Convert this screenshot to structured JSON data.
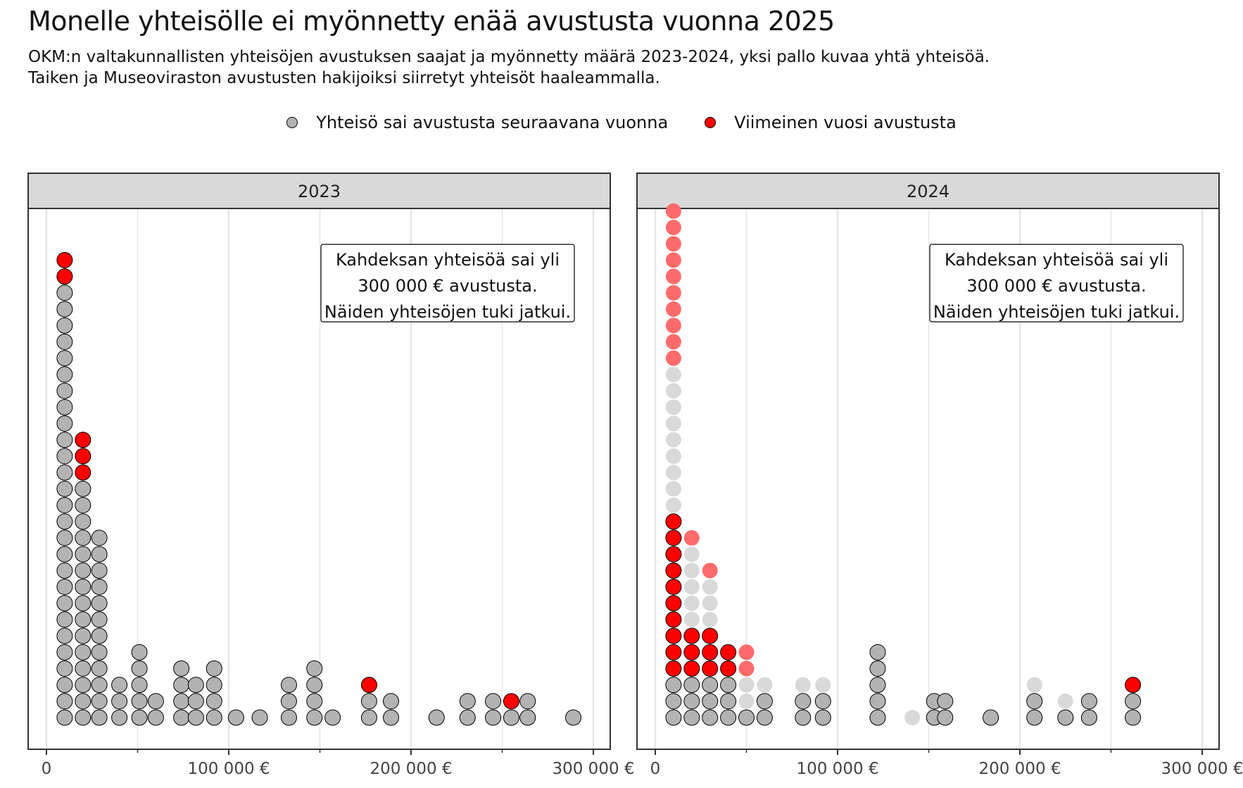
{
  "title": "Monelle yhteisölle ei myönnetty enää avustusta vuonna 2025",
  "subtitle_line1": "OKM:n valtakunnallisten yhteisöjen avustuksen saajat ja myönnetty määrä 2023-2024, yksi pallo kuvaa yhtä yhteisöä.",
  "subtitle_line2": "Taiken ja Museoviraston avustusten hakijoiksi siirretyt yhteisöt haaleammalla.",
  "legend": [
    {
      "label": "Yhteisö sai avustusta seuraavana vuonna",
      "color": "#b3b3b3"
    },
    {
      "label": "Viimeinen vuosi avustusta",
      "color": "#ff0000"
    }
  ],
  "colors": {
    "continued": "#b3b3b3",
    "last": "#ff0000",
    "continued_transferred": "#d9d9d9",
    "last_transferred": "#ff6b6b",
    "strip": "#d9d9d9"
  },
  "chart_data": [
    {
      "type": "dotplot",
      "panel": "2023",
      "x_ticks": [
        "0",
        "100 000 €",
        "200 000 €",
        "300 000 €"
      ],
      "xlim": [
        0,
        310000
      ],
      "annotation": [
        "Kahdeksan yhteisöä sai yli",
        "300 000 € avustusta.",
        "Näiden yhteisöjen tuki jatkui."
      ],
      "columns": [
        {
          "x": 10000,
          "stack": [
            "c",
            "c",
            "c",
            "c",
            "c",
            "c",
            "c",
            "c",
            "c",
            "c",
            "c",
            "c",
            "c",
            "c",
            "c",
            "c",
            "c",
            "c",
            "c",
            "c",
            "c",
            "c",
            "c",
            "c",
            "c",
            "c",
            "c",
            "l",
            "l"
          ]
        },
        {
          "x": 20000,
          "stack": [
            "c",
            "c",
            "c",
            "c",
            "c",
            "c",
            "c",
            "c",
            "c",
            "c",
            "c",
            "c",
            "c",
            "c",
            "c",
            "l",
            "l",
            "l"
          ]
        },
        {
          "x": 29000,
          "stack": [
            "c",
            "c",
            "c",
            "c",
            "c",
            "c",
            "c",
            "c",
            "c",
            "c",
            "c",
            "c"
          ]
        },
        {
          "x": 40000,
          "stack": [
            "c",
            "c",
            "c"
          ]
        },
        {
          "x": 51000,
          "stack": [
            "c",
            "c",
            "c",
            "c",
            "c"
          ]
        },
        {
          "x": 60000,
          "stack": [
            "c",
            "c"
          ]
        },
        {
          "x": 74000,
          "stack": [
            "c",
            "c",
            "c",
            "c"
          ]
        },
        {
          "x": 82000,
          "stack": [
            "c",
            "c",
            "c"
          ]
        },
        {
          "x": 92000,
          "stack": [
            "c",
            "c",
            "c",
            "c"
          ]
        },
        {
          "x": 104000,
          "stack": [
            "c"
          ]
        },
        {
          "x": 117000,
          "stack": [
            "c"
          ]
        },
        {
          "x": 133000,
          "stack": [
            "c",
            "c",
            "c"
          ]
        },
        {
          "x": 147000,
          "stack": [
            "c",
            "c",
            "c",
            "c"
          ]
        },
        {
          "x": 157000,
          "stack": [
            "c"
          ]
        },
        {
          "x": 177000,
          "stack": [
            "c",
            "c",
            "l"
          ]
        },
        {
          "x": 189000,
          "stack": [
            "c",
            "c"
          ]
        },
        {
          "x": 214000,
          "stack": [
            "c"
          ]
        },
        {
          "x": 231000,
          "stack": [
            "c",
            "c"
          ]
        },
        {
          "x": 245000,
          "stack": [
            "c",
            "c"
          ]
        },
        {
          "x": 255000,
          "stack": [
            "c",
            "l"
          ]
        },
        {
          "x": 264000,
          "stack": [
            "c",
            "c"
          ]
        },
        {
          "x": 289000,
          "stack": [
            "c"
          ]
        }
      ]
    },
    {
      "type": "dotplot",
      "panel": "2024",
      "x_ticks": [
        "0",
        "100 000 €",
        "200 000 €",
        "300 000 €"
      ],
      "xlim": [
        0,
        310000
      ],
      "annotation": [
        "Kahdeksan yhteisöä sai yli",
        "300 000 € avustusta.",
        "Näiden yhteisöjen tuki jatkui."
      ],
      "columns": [
        {
          "x": 10000,
          "stack": [
            "c",
            "c",
            "c",
            "l",
            "l",
            "l",
            "l",
            "l",
            "l",
            "l",
            "l",
            "l",
            "l",
            "tc",
            "tc",
            "tc",
            "tc",
            "tc",
            "tc",
            "tc",
            "tc",
            "tc",
            "tl",
            "tl",
            "tl",
            "tl",
            "tl",
            "tl",
            "tl",
            "tl",
            "tl",
            "tl"
          ]
        },
        {
          "x": 20000,
          "stack": [
            "c",
            "c",
            "c",
            "l",
            "l",
            "l",
            "tc",
            "tc",
            "tc",
            "tc",
            "tc",
            "tl"
          ]
        },
        {
          "x": 30000,
          "stack": [
            "c",
            "c",
            "c",
            "l",
            "l",
            "l",
            "tc",
            "tc",
            "tc",
            "tl"
          ]
        },
        {
          "x": 40000,
          "stack": [
            "c",
            "c",
            "c",
            "l",
            "l"
          ]
        },
        {
          "x": 50000,
          "stack": [
            "c",
            "tc",
            "tc",
            "tl",
            "tl"
          ]
        },
        {
          "x": 60000,
          "stack": [
            "c",
            "c",
            "tc"
          ]
        },
        {
          "x": 81000,
          "stack": [
            "c",
            "c",
            "tc"
          ]
        },
        {
          "x": 92000,
          "stack": [
            "c",
            "c",
            "tc"
          ]
        },
        {
          "x": 122000,
          "stack": [
            "c",
            "c",
            "c",
            "c",
            "c"
          ]
        },
        {
          "x": 141000,
          "stack": [
            "tc"
          ]
        },
        {
          "x": 153000,
          "stack": [
            "c",
            "c"
          ]
        },
        {
          "x": 159000,
          "stack": [
            "c",
            "c"
          ]
        },
        {
          "x": 184000,
          "stack": [
            "c"
          ]
        },
        {
          "x": 208000,
          "stack": [
            "c",
            "c",
            "tc"
          ]
        },
        {
          "x": 225000,
          "stack": [
            "c",
            "tc"
          ]
        },
        {
          "x": 238000,
          "stack": [
            "c",
            "c"
          ]
        },
        {
          "x": 262000,
          "stack": [
            "c",
            "c",
            "l"
          ]
        }
      ]
    }
  ]
}
